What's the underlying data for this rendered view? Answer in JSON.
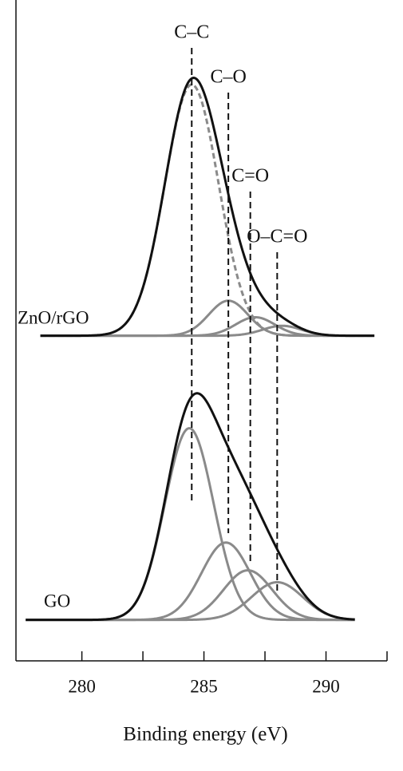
{
  "chart_data": {
    "type": "peak-fit",
    "x_label": "Binding energy (eV)",
    "xlim": [
      277.3,
      292.5
    ],
    "xticks": [
      280,
      285,
      290
    ],
    "xminorticks": [
      282.5,
      287.5,
      292.5
    ],
    "ylim": [
      0,
      100
    ],
    "envelope_color": "#111111",
    "component_color": "#8a8a8a",
    "references": [
      {
        "label": "C–C",
        "value": 284.5
      },
      {
        "label": "C–O",
        "value": 286.0
      },
      {
        "label": "C=O",
        "value": 286.9
      },
      {
        "label": "O–C=O",
        "value": 288.0
      }
    ],
    "panels": [
      {
        "label": "ZnO/rGO",
        "baseline": 49.2,
        "xrange": [
          278.3,
          292.0
        ],
        "components": [
          {
            "center": 284.5,
            "height": 38,
            "width": 1.1,
            "dashed": true
          },
          {
            "center": 286.0,
            "height": 5.3,
            "width": 0.8,
            "dashed": false
          },
          {
            "center": 287.1,
            "height": 2.8,
            "width": 0.8,
            "dashed": false
          },
          {
            "center": 288.2,
            "height": 1.5,
            "width": 0.8,
            "dashed": false
          }
        ]
      },
      {
        "label": "GO",
        "baseline": 6.2,
        "xrange": [
          277.7,
          291.2
        ],
        "components": [
          {
            "center": 284.4,
            "height": 29,
            "width": 1.0,
            "dashed": false
          },
          {
            "center": 285.9,
            "height": 11.7,
            "width": 1.0,
            "dashed": false
          },
          {
            "center": 286.8,
            "height": 7.5,
            "width": 1.0,
            "dashed": false
          },
          {
            "center": 288.0,
            "height": 5.7,
            "width": 1.05,
            "dashed": false
          }
        ]
      }
    ]
  }
}
